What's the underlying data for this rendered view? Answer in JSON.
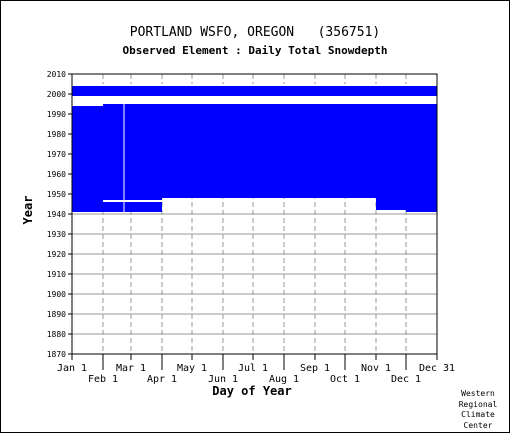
{
  "chart_data": {
    "type": "heatmap",
    "title": "PORTLAND WSFO, OREGON   (356751)",
    "subtitle": "Observed Element : Daily Total Snowdepth",
    "xlabel": "Day of Year",
    "ylabel": "Year",
    "xlim_day_of_year": [
      1,
      366
    ],
    "ylim": [
      1870,
      2010
    ],
    "y_ticks": [
      1870,
      1880,
      1890,
      1900,
      1910,
      1920,
      1930,
      1940,
      1950,
      1960,
      1970,
      1980,
      1990,
      2000,
      2010
    ],
    "x_ticks_top_row": [
      {
        "label": "Jan 1",
        "day": 1
      },
      {
        "label": "Mar 1",
        "day": 60
      },
      {
        "label": "May 1",
        "day": 121
      },
      {
        "label": "Jul 1",
        "day": 182
      },
      {
        "label": "Sep 1",
        "day": 244
      },
      {
        "label": "Nov 1",
        "day": 305
      },
      {
        "label": "Dec 31",
        "day": 366
      }
    ],
    "x_ticks_bottom_row": [
      {
        "label": "Feb 1",
        "day": 32
      },
      {
        "label": "Apr 1",
        "day": 91
      },
      {
        "label": "Jun 1",
        "day": 152
      },
      {
        "label": "Aug 1",
        "day": 213
      },
      {
        "label": "Oct 1",
        "day": 274
      },
      {
        "label": "Dec 1",
        "day": 335
      }
    ],
    "grid": true,
    "data_color": "#0000ff",
    "coverage_blocks": [
      {
        "day_start": 1,
        "day_end": 32,
        "year_start": 1941,
        "year_end": 1994
      },
      {
        "day_start": 32,
        "day_end": 91,
        "year_start": 1941,
        "year_end": 1995
      },
      {
        "day_start": 91,
        "day_end": 366,
        "year_start": 1948,
        "year_end": 1995
      },
      {
        "day_start": 335,
        "day_end": 366,
        "year_start": 1941,
        "year_end": 1948
      },
      {
        "day_start": 305,
        "day_end": 335,
        "year_start": 1942,
        "year_end": 1948
      },
      {
        "day_start": 1,
        "day_end": 366,
        "year_start": 1999,
        "year_end": 2004
      }
    ],
    "missing_bands": [
      {
        "day_start": 32,
        "day_end": 91,
        "year_start": 1946,
        "year_end": 1947
      },
      {
        "day_start": 1,
        "day_end": 366,
        "year_start": 1995,
        "year_end": 1999
      },
      {
        "day_start": 1,
        "day_end": 366,
        "year_start": 2004,
        "year_end": 2005
      }
    ],
    "missing_lines": [
      {
        "axis": "day",
        "day": 53,
        "year_start": 1941,
        "year_end": 1998
      },
      {
        "axis": "year",
        "year": 1996.3,
        "day_start": 28,
        "day_end": 366
      }
    ]
  },
  "credit": [
    "Western",
    "Regional",
    "Climate",
    "Center"
  ],
  "colors": {
    "background": "#ffffff",
    "grid": "#999999",
    "axis": "#000000",
    "data": "#0000ff"
  }
}
